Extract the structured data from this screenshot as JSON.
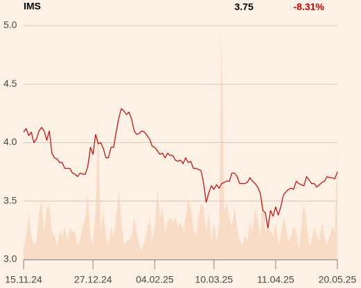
{
  "chart_data": {
    "type": "line",
    "title": "IMS",
    "price": "3.75",
    "change": "-8.31%",
    "categories": [
      "15.11.24",
      null,
      null,
      null,
      null,
      null,
      null,
      null,
      null,
      null,
      null,
      null,
      null,
      null,
      null,
      null,
      null,
      null,
      null,
      null,
      null,
      null,
      null,
      null,
      null,
      null,
      null,
      "27.12.24",
      null,
      null,
      null,
      null,
      null,
      null,
      null,
      null,
      null,
      null,
      null,
      null,
      null,
      null,
      null,
      null,
      null,
      null,
      null,
      null,
      null,
      null,
      null,
      "04.02.25",
      null,
      null,
      null,
      null,
      null,
      null,
      null,
      null,
      null,
      null,
      null,
      null,
      null,
      null,
      null,
      null,
      null,
      null,
      null,
      null,
      null,
      null,
      "10.03.25",
      null,
      null,
      null,
      null,
      null,
      null,
      null,
      null,
      null,
      null,
      null,
      null,
      null,
      null,
      null,
      null,
      null,
      null,
      null,
      null,
      null,
      null,
      null,
      "11.04.25",
      null,
      null,
      null,
      null,
      null,
      null,
      null,
      null,
      null,
      null,
      null,
      null,
      null,
      null,
      null,
      null,
      null,
      null,
      null,
      null,
      null,
      null,
      null,
      "20.05.25"
    ],
    "series": [
      {
        "color": "#cc0000",
        "values": [
          4.09,
          4.12,
          4.06,
          4.09,
          4.0,
          4.03,
          4.1,
          4.13,
          4.1,
          4.02,
          4.1,
          3.91,
          3.87,
          3.86,
          3.83,
          3.83,
          3.78,
          3.78,
          3.78,
          3.74,
          3.73,
          3.71,
          3.74,
          3.73,
          3.73,
          3.8,
          3.96,
          3.9,
          4.07,
          3.99,
          4.0,
          3.95,
          3.87,
          3.87,
          3.96,
          3.96,
          4.09,
          4.21,
          4.29,
          4.27,
          4.24,
          4.26,
          4.2,
          4.1,
          4.07,
          4.08,
          4.1,
          4.09,
          4.06,
          4.03,
          3.97,
          3.96,
          3.93,
          3.9,
          3.91,
          3.87,
          3.91,
          3.89,
          3.89,
          3.85,
          3.84,
          3.85,
          3.82,
          3.87,
          3.83,
          3.84,
          3.78,
          3.78,
          3.77,
          3.76,
          3.65,
          3.49,
          3.57,
          3.63,
          3.6,
          3.64,
          3.61,
          3.65,
          3.66,
          3.67,
          3.67,
          3.74,
          3.74,
          3.71,
          3.65,
          3.65,
          3.65,
          3.66,
          3.7,
          3.67,
          3.65,
          3.62,
          3.57,
          3.42,
          3.4,
          3.27,
          3.42,
          3.37,
          3.45,
          3.38,
          3.45,
          3.55,
          3.58,
          3.6,
          3.61,
          3.6,
          3.67,
          3.65,
          3.64,
          3.63,
          3.71,
          3.68,
          3.65,
          3.65,
          3.62,
          3.64,
          3.66,
          3.67,
          3.71,
          3.7,
          3.7,
          3.69,
          3.75
        ]
      }
    ],
    "volume": {
      "color": "#f9dcc6",
      "values": [
        5,
        10,
        20,
        10,
        6,
        8,
        20,
        25,
        12,
        22,
        24,
        12,
        10,
        6,
        12,
        10,
        14,
        8,
        14,
        12,
        12,
        6,
        8,
        14,
        18,
        28,
        10,
        6,
        22,
        58,
        12,
        20,
        10,
        6,
        14,
        10,
        18,
        30,
        18,
        6,
        8,
        8,
        10,
        18,
        12,
        6,
        4,
        8,
        12,
        18,
        8,
        14,
        30,
        18,
        22,
        12,
        16,
        18,
        16,
        18,
        14,
        16,
        12,
        18,
        26,
        22,
        14,
        10,
        18,
        24,
        22,
        12,
        20,
        8,
        16,
        8,
        14,
        97,
        20,
        24,
        18,
        14,
        22,
        14,
        8,
        6,
        10,
        8,
        16,
        12,
        22,
        18,
        10,
        26,
        12,
        14,
        12,
        10,
        16,
        6,
        10,
        18,
        14,
        8,
        10,
        14,
        12,
        4,
        14,
        24,
        16,
        6,
        8,
        14,
        10,
        8,
        16,
        10,
        6,
        10,
        14,
        12,
        46
      ]
    },
    "ylim": [
      3.0,
      5.0
    ],
    "yticks": [
      {
        "value": 3.0,
        "label": "3.0"
      },
      3.5,
      {
        "value": 4.0,
        "label": "4.0"
      },
      4.5,
      {
        "value": 5.0,
        "label": "5.0"
      }
    ],
    "y2lim": [
      0,
      100
    ],
    "grid": true
  }
}
